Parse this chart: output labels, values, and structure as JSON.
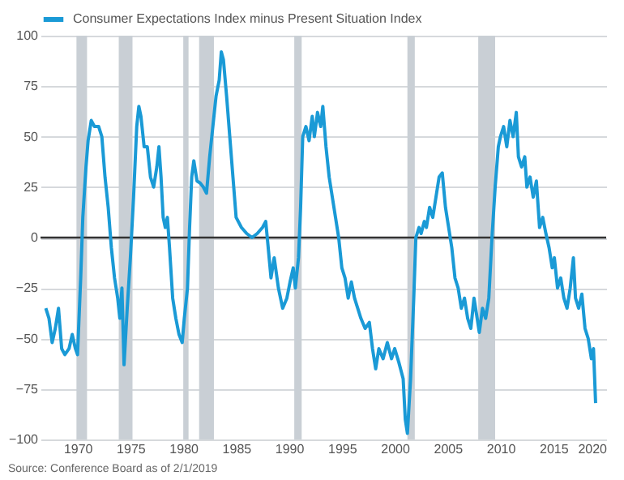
{
  "chart_data": {
    "type": "line",
    "x": [
      1967.0,
      1967.3,
      1967.6,
      1967.9,
      1968.2,
      1968.5,
      1968.8,
      1969.2,
      1969.5,
      1969.8,
      1970.0,
      1970.3,
      1970.5,
      1970.8,
      1971.0,
      1971.3,
      1971.6,
      1972.0,
      1972.3,
      1972.6,
      1972.9,
      1973.2,
      1973.5,
      1973.8,
      1974.0,
      1974.2,
      1974.4,
      1974.7,
      1975.0,
      1975.3,
      1975.6,
      1975.8,
      1976.0,
      1976.3,
      1976.6,
      1976.9,
      1977.2,
      1977.5,
      1977.7,
      1977.9,
      1978.1,
      1978.3,
      1978.5,
      1978.7,
      1979.0,
      1979.3,
      1979.6,
      1979.9,
      1980.1,
      1980.4,
      1980.6,
      1980.8,
      1981.0,
      1981.3,
      1981.6,
      1981.9,
      1982.2,
      1982.5,
      1982.8,
      1983.1,
      1983.4,
      1983.6,
      1983.8,
      1984.1,
      1984.4,
      1984.7,
      1985.0,
      1985.5,
      1986.0,
      1986.5,
      1987.0,
      1987.5,
      1987.8,
      1988.0,
      1988.3,
      1988.6,
      1989.0,
      1989.4,
      1989.8,
      1990.1,
      1990.4,
      1990.6,
      1990.9,
      1991.1,
      1991.3,
      1991.6,
      1991.9,
      1992.2,
      1992.4,
      1992.7,
      1993.0,
      1993.2,
      1993.5,
      1993.8,
      1994.1,
      1994.4,
      1994.7,
      1995.0,
      1995.3,
      1995.6,
      1995.9,
      1996.2,
      1996.5,
      1996.8,
      1997.2,
      1997.6,
      1997.9,
      1998.2,
      1998.5,
      1998.9,
      1999.3,
      1999.7,
      2000.0,
      2000.4,
      2000.8,
      2001.0,
      2001.2,
      2001.5,
      2001.8,
      2002.0,
      2002.3,
      2002.5,
      2002.8,
      2003.0,
      2003.3,
      2003.6,
      2003.9,
      2004.2,
      2004.5,
      2004.8,
      2005.1,
      2005.4,
      2005.7,
      2006.0,
      2006.3,
      2006.6,
      2006.9,
      2007.2,
      2007.5,
      2007.8,
      2008.0,
      2008.3,
      2008.6,
      2008.9,
      2009.2,
      2009.5,
      2009.8,
      2010.0,
      2010.3,
      2010.6,
      2010.9,
      2011.2,
      2011.5,
      2011.7,
      2012.0,
      2012.3,
      2012.5,
      2012.8,
      2013.1,
      2013.4,
      2013.7,
      2014.0,
      2014.3,
      2014.6,
      2014.9,
      2015.1,
      2015.4,
      2015.7,
      2016.0,
      2016.3,
      2016.6,
      2016.9,
      2017.1,
      2017.4,
      2017.7,
      2018.0,
      2018.3,
      2018.6,
      2018.8,
      2019.0
    ],
    "series": [
      {
        "name": "Consumer Expectations Index minus Present Situation Index",
        "color": "#1a9ad6",
        "values": [
          -35,
          -40,
          -52,
          -45,
          -35,
          -55,
          -58,
          -55,
          -48,
          -55,
          -58,
          -20,
          10,
          35,
          48,
          58,
          55,
          55,
          50,
          30,
          15,
          -5,
          -20,
          -30,
          -40,
          -25,
          -63,
          -35,
          -10,
          20,
          55,
          65,
          60,
          45,
          45,
          30,
          25,
          35,
          45,
          30,
          10,
          5,
          10,
          -5,
          -30,
          -40,
          -48,
          -52,
          -40,
          -25,
          5,
          30,
          38,
          28,
          27,
          25,
          22,
          40,
          55,
          70,
          78,
          92,
          88,
          70,
          50,
          30,
          10,
          5,
          2,
          0,
          2,
          5,
          8,
          -3,
          -20,
          -10,
          -25,
          -35,
          -30,
          -22,
          -15,
          -25,
          -10,
          15,
          50,
          55,
          48,
          60,
          50,
          62,
          55,
          65,
          45,
          30,
          20,
          10,
          0,
          -15,
          -20,
          -30,
          -22,
          -30,
          -35,
          -40,
          -45,
          -42,
          -55,
          -65,
          -55,
          -60,
          -52,
          -60,
          -55,
          -62,
          -70,
          -90,
          -97,
          -70,
          -30,
          0,
          5,
          2,
          8,
          5,
          15,
          10,
          20,
          30,
          32,
          15,
          5,
          -5,
          -20,
          -25,
          -35,
          -30,
          -40,
          -45,
          -30,
          -40,
          -47,
          -35,
          -40,
          -30,
          0,
          25,
          45,
          50,
          55,
          45,
          58,
          50,
          62,
          40,
          35,
          40,
          25,
          30,
          20,
          28,
          5,
          10,
          2,
          -5,
          -15,
          -10,
          -25,
          -20,
          -30,
          -35,
          -25,
          -10,
          -30,
          -35,
          -28,
          -45,
          -50,
          -60,
          -55,
          -82
        ]
      }
    ],
    "xlim": [
      1966.5,
      2020
    ],
    "xticks": [
      1970,
      1975,
      1980,
      1985,
      1990,
      1995,
      2000,
      2005,
      2010,
      2015,
      2020
    ],
    "ylim": [
      -100,
      100
    ],
    "yticks": [
      -100,
      -75,
      -50,
      -25,
      0,
      25,
      50,
      75,
      100
    ],
    "grid": "y",
    "legend": "top left",
    "ref_lines": [
      {
        "axis": "y",
        "value": 0,
        "color": "#333333"
      }
    ],
    "bands": [
      {
        "axis": "x",
        "from": 1969.9,
        "to": 1970.9,
        "color": "#c9cfd5"
      },
      {
        "axis": "x",
        "from": 1973.9,
        "to": 1975.2,
        "color": "#c9cfd5"
      },
      {
        "axis": "x",
        "from": 1980.0,
        "to": 1980.5,
        "color": "#c9cfd5"
      },
      {
        "axis": "x",
        "from": 1981.5,
        "to": 1982.9,
        "color": "#c9cfd5"
      },
      {
        "axis": "x",
        "from": 1990.5,
        "to": 1991.2,
        "color": "#c9cfd5"
      },
      {
        "axis": "x",
        "from": 2001.2,
        "to": 2001.9,
        "color": "#c9cfd5"
      },
      {
        "axis": "x",
        "from": 2007.9,
        "to": 2009.5,
        "color": "#c9cfd5"
      }
    ],
    "annotations": [
      "Source: Conference Board as of 2/1/2019"
    ]
  }
}
